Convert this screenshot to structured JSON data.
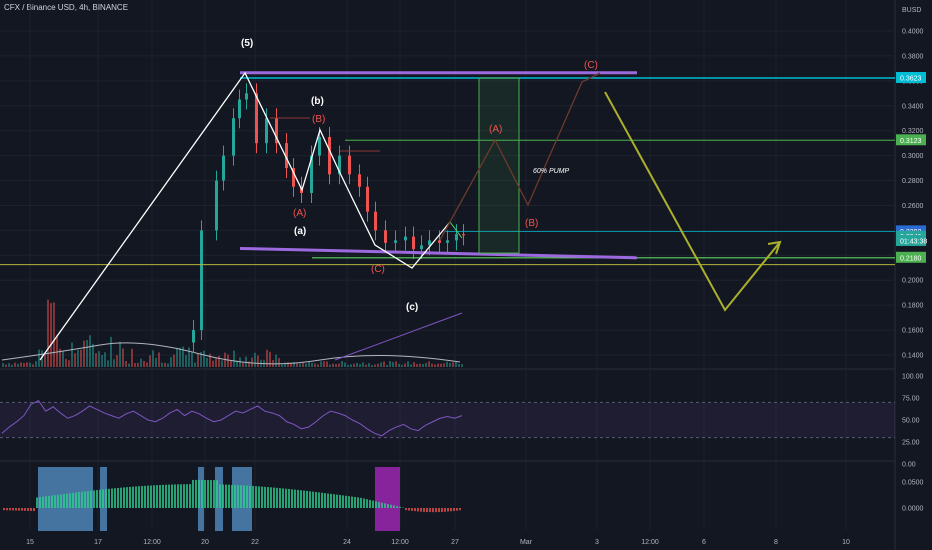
{
  "header": {
    "title": "CFX / Binance USD, 4h, BINANCE",
    "currency": "BUSD"
  },
  "colors": {
    "bg": "#131722",
    "up": "#26a69a",
    "down": "#ef5350",
    "grid": "#1e222d",
    "white": "#ffffff",
    "purple": "#9c6ade",
    "cyan": "#00bcd4",
    "green": "#4caf50",
    "yellow": "#c9b32a",
    "olive": "#aab02a",
    "red": "#f05350",
    "rsi": "#7e57c2"
  },
  "price_axis": {
    "ticks": [
      "0.4000",
      "0.3800",
      "0.3600",
      "0.3400",
      "0.3200",
      "0.3000",
      "0.2800",
      "0.2600",
      "0.2400",
      "0.2200",
      "0.2000",
      "0.1800",
      "0.1600",
      "0.1400"
    ],
    "tick_values": [
      0.4,
      0.38,
      0.36,
      0.34,
      0.32,
      0.3,
      0.28,
      0.26,
      0.24,
      0.22,
      0.2,
      0.18,
      0.16,
      0.14
    ]
  },
  "time_axis": [
    "15",
    "17",
    "12:00",
    "20",
    "22",
    "24",
    "12:00",
    "27",
    "Mar",
    "3",
    "12:00",
    "6",
    "8",
    "10"
  ],
  "price_labels": [
    {
      "text": "0.3623",
      "value": 0.3623,
      "color": "#00bcd4"
    },
    {
      "text": "0.3123",
      "value": 0.3123,
      "color": "#4caf50"
    },
    {
      "text": "0.2392",
      "value": 0.2392,
      "color": "#2a6bd4"
    },
    {
      "text": "0.2349",
      "value": 0.2349,
      "color": "#26a69a"
    },
    {
      "text": "01:43:38",
      "value": 0.2315,
      "color": "#26a69a"
    },
    {
      "text": "0.2180",
      "value": 0.218,
      "color": "#4caf50"
    }
  ],
  "annotations": {
    "wave5": "(5)",
    "wave_b_lower": "(b)",
    "wave_B_red1": "(B)",
    "wave_A_red1": "(A)",
    "wave_a_lower": "(a)",
    "wave_C_red1": "(C)",
    "wave_c_lower": "(c)",
    "wave_A_red2": "(A)",
    "wave_B_red2": "(B)",
    "wave_C_red2": "(C)",
    "pump_label": "60% PUMP"
  },
  "rsi_axis": [
    "100.00",
    "75.00",
    "50.00",
    "25.00",
    "0.00"
  ],
  "osc_axis": [
    "0.0500",
    "0.0000"
  ],
  "chart_data": {
    "type": "line",
    "title": "CFX / Binance USD, 4h, BINANCE",
    "ylabel": "BUSD",
    "ylim": [
      0.13,
      0.415
    ],
    "elliott_path": {
      "x": [
        "Feb 15 12:00",
        "Feb 20 20:00",
        "Feb 22 04:00",
        "Feb 22 20:00",
        "Feb 23 12:00",
        "Feb 24 20:00",
        "Feb 25 08:00",
        "Feb 26 04:00",
        "Feb 27 00:00"
      ],
      "y": [
        0.14,
        0.362,
        0.268,
        0.32,
        0.285,
        0.232,
        0.212,
        0.238,
        0.235
      ]
    },
    "forecast_path": {
      "x": [
        "Feb 27 00:00",
        "Feb 28",
        "Mar 2",
        "Mar 3",
        "Mar 6",
        "Mar 7"
      ],
      "y": [
        0.235,
        0.355,
        0.28,
        0.36,
        0.176,
        0.23
      ]
    },
    "levels": [
      {
        "name": "0.3623",
        "value": 0.3623
      },
      {
        "name": "0.3123",
        "value": 0.3123
      },
      {
        "name": "0.2392",
        "value": 0.2392
      },
      {
        "name": "0.2180",
        "value": 0.218
      }
    ],
    "rsi_range": [
      0,
      100
    ],
    "rsi_bands": [
      30,
      70
    ]
  }
}
